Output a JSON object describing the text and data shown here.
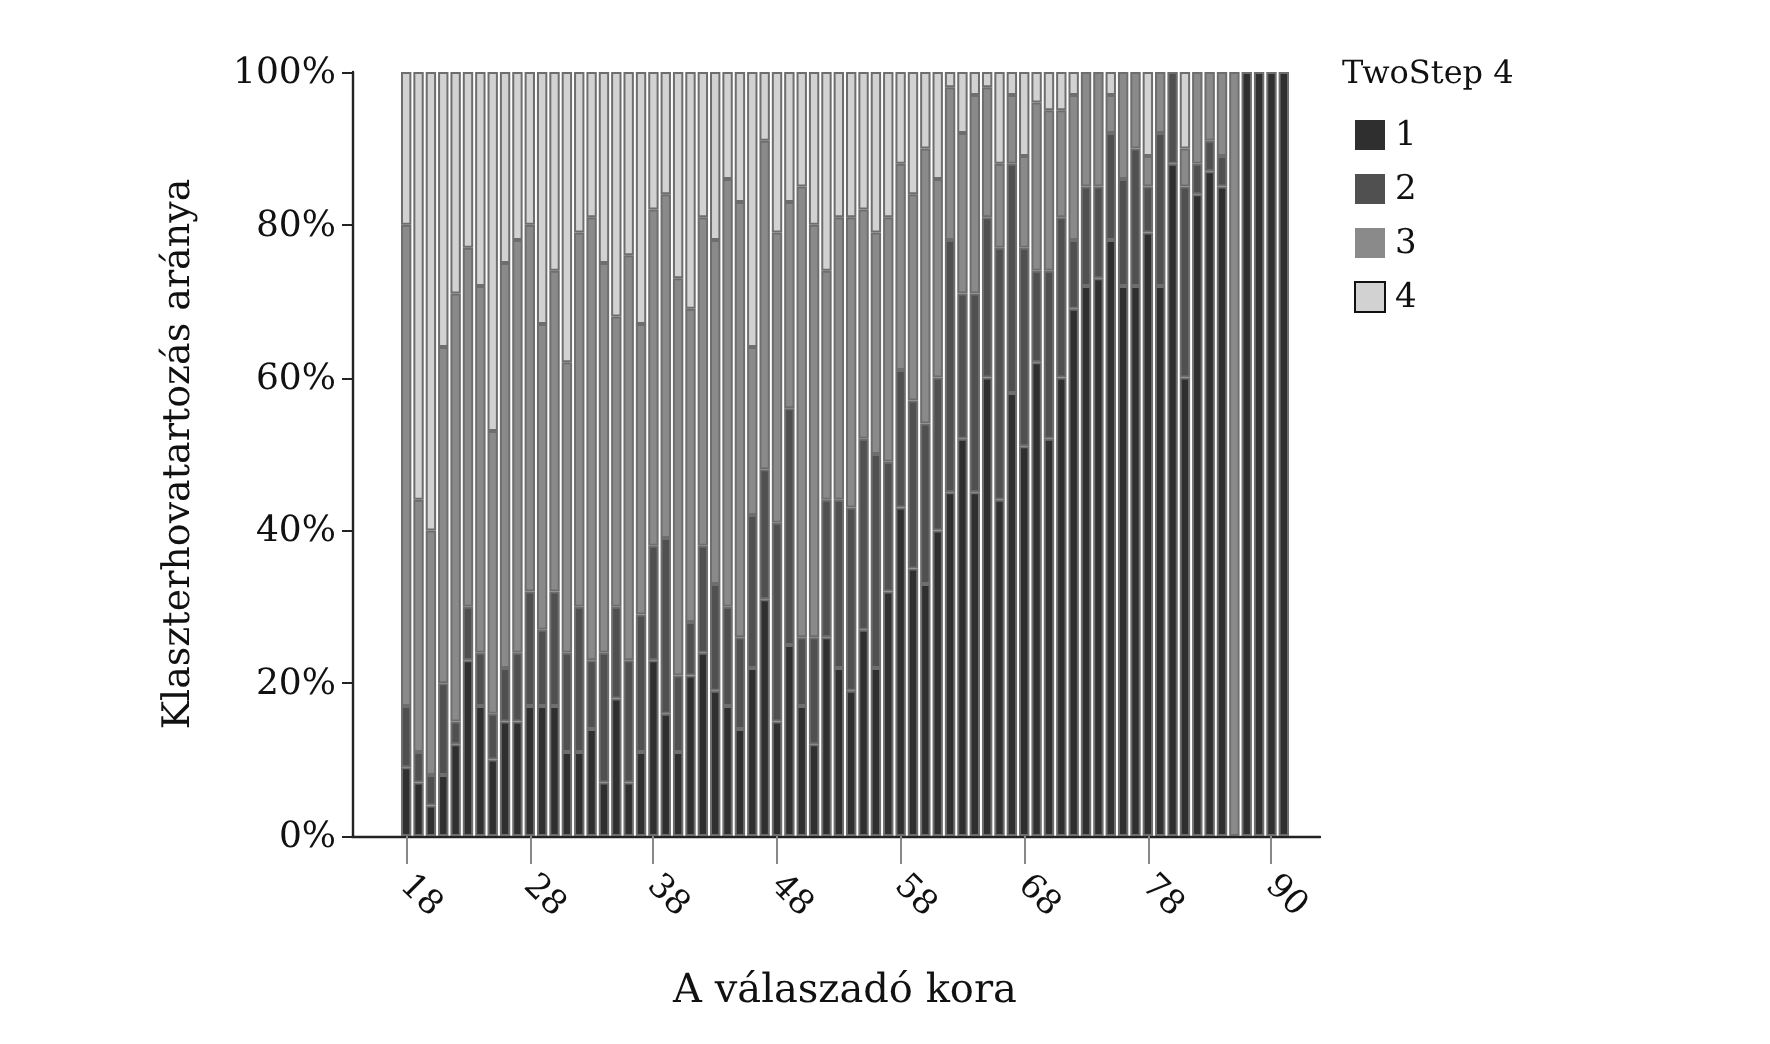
{
  "chart_data": {
    "type": "bar",
    "stacked": true,
    "xlabel": "A válaszadó kora",
    "ylabel": "Klaszterhovatartozás aránya",
    "legend_title": "TwoStep 4",
    "legend": "top right",
    "categories": [
      "18",
      null,
      null,
      null,
      null,
      null,
      null,
      null,
      null,
      null,
      "28",
      null,
      null,
      null,
      null,
      null,
      null,
      null,
      null,
      null,
      "38",
      null,
      null,
      null,
      null,
      null,
      null,
      null,
      null,
      null,
      "48",
      null,
      null,
      null,
      null,
      null,
      null,
      null,
      null,
      null,
      "58",
      null,
      null,
      null,
      null,
      null,
      null,
      null,
      null,
      null,
      "68",
      null,
      null,
      null,
      null,
      null,
      null,
      null,
      null,
      null,
      "78",
      null,
      null,
      null,
      null,
      null,
      null,
      null,
      null,
      null,
      "90",
      null
    ],
    "ylim": [
      0,
      100
    ],
    "yticks": [
      {
        "value": 0,
        "label": "0%"
      },
      {
        "value": 20,
        "label": "20%"
      },
      {
        "value": 40,
        "label": "40%"
      },
      {
        "value": 60,
        "label": "60%"
      },
      {
        "value": 80,
        "label": "80%"
      },
      {
        "value": 100,
        "label": "100%"
      }
    ],
    "series": [
      {
        "name": "1",
        "color": "#2f2f2f",
        "values": [
          9,
          7,
          4,
          8,
          12,
          23,
          17,
          10,
          15,
          15,
          17,
          17,
          17,
          11,
          11,
          14,
          7,
          18,
          7,
          11,
          23,
          16,
          11,
          21,
          24,
          19,
          17,
          14,
          22,
          31,
          15,
          25,
          17,
          12,
          26,
          22,
          19,
          27,
          22,
          32,
          43,
          35,
          33,
          40,
          45,
          52,
          45,
          60,
          44,
          58,
          51,
          62,
          52,
          60,
          69,
          72,
          73,
          78,
          72,
          72,
          79,
          72,
          88,
          60,
          84,
          87,
          85,
          0,
          100,
          100,
          100,
          100
        ]
      },
      {
        "name": "2",
        "color": "#505050",
        "values": [
          8,
          4,
          4,
          12,
          3,
          7,
          7,
          6,
          7,
          9,
          15,
          10,
          15,
          13,
          19,
          9,
          17,
          12,
          16,
          18,
          15,
          23,
          10,
          7,
          14,
          14,
          13,
          12,
          20,
          17,
          26,
          31,
          9,
          14,
          18,
          22,
          24,
          25,
          28,
          17,
          18,
          22,
          21,
          20,
          33,
          19,
          26,
          21,
          33,
          30,
          26,
          12,
          22,
          21,
          9,
          13,
          12,
          14,
          14,
          18,
          6,
          20,
          12,
          25,
          4,
          4,
          4,
          0,
          0,
          0,
          0,
          0
        ]
      },
      {
        "name": "3",
        "color": "#8a8a8a",
        "values": [
          63,
          33,
          32,
          44,
          56,
          47,
          48,
          37,
          53,
          54,
          48,
          40,
          42,
          38,
          49,
          58,
          51,
          38,
          53,
          38,
          44,
          45,
          52,
          41,
          43,
          45,
          56,
          57,
          22,
          43,
          38,
          27,
          59,
          54,
          30,
          37,
          38,
          30,
          29,
          32,
          27,
          27,
          36,
          26,
          20,
          21,
          26,
          17,
          11,
          9,
          12,
          22,
          21,
          14,
          19,
          15,
          15,
          5,
          14,
          10,
          4,
          8,
          0,
          5,
          12,
          9,
          11,
          100,
          0,
          0,
          0,
          0
        ]
      },
      {
        "name": "4",
        "color": "#d2d2d2",
        "values": [
          20,
          56,
          60,
          36,
          29,
          23,
          28,
          47,
          25,
          22,
          20,
          33,
          26,
          38,
          21,
          19,
          25,
          32,
          24,
          33,
          18,
          16,
          27,
          31,
          19,
          22,
          14,
          17,
          36,
          9,
          21,
          17,
          15,
          20,
          26,
          19,
          19,
          18,
          21,
          19,
          12,
          16,
          10,
          14,
          2,
          8,
          3,
          2,
          12,
          3,
          11,
          4,
          5,
          5,
          3,
          0,
          0,
          3,
          0,
          0,
          11,
          0,
          0,
          10,
          0,
          0,
          0,
          0,
          0,
          0,
          0,
          0
        ]
      }
    ]
  }
}
